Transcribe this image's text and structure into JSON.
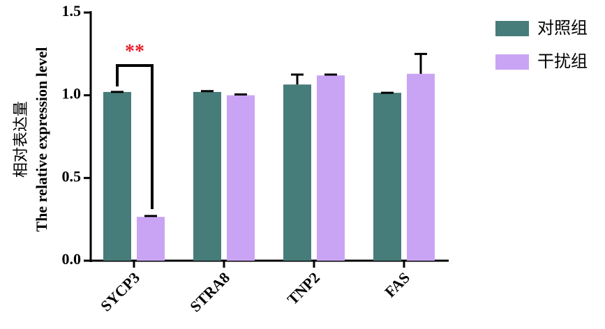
{
  "chart_data": {
    "type": "bar",
    "ylabel": [
      "相对表达量",
      "The relative expression level"
    ],
    "categories": [
      "SYCP3",
      "STRA8",
      "TNP2",
      "FAS"
    ],
    "series": [
      {
        "name": "对照组",
        "color": "#467c79",
        "values": [
          1.02,
          1.02,
          1.065,
          1.015
        ],
        "errors": [
          0,
          0.005,
          0.06,
          0
        ]
      },
      {
        "name": "干扰组",
        "color": "#caa4f4",
        "values": [
          0.265,
          1.0,
          1.12,
          1.13
        ],
        "errors": [
          0.005,
          0.005,
          0.005,
          0.12
        ]
      }
    ],
    "annotations": [
      {
        "text": "**",
        "color": "#e8202a"
      }
    ],
    "ylim": [
      0,
      1.5
    ],
    "yticks": [
      {
        "value": 0,
        "label": "0.0"
      },
      0.5,
      {
        "value": 1,
        "label": "1.0"
      },
      1.5
    ],
    "legend": "right"
  }
}
